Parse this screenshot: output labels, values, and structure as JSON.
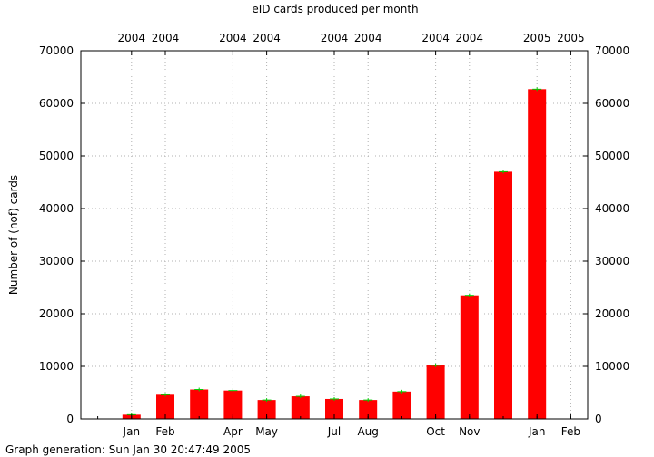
{
  "chart_data": {
    "type": "bar",
    "title": "eID cards produced per month",
    "ylabel": "Number of (nof) cards",
    "footer": "Graph generation: Sun Jan 30 20:47:49 2005",
    "ylim": [
      0,
      70000
    ],
    "yticks": [
      0,
      10000,
      20000,
      30000,
      40000,
      50000,
      60000,
      70000
    ],
    "grid": true,
    "bar_color": "#ff0000",
    "cap_color": "#00cc00",
    "x": [
      1,
      2,
      3,
      4,
      5,
      6,
      7,
      8,
      9,
      10,
      11,
      12,
      13,
      14
    ],
    "values": [
      800,
      4600,
      5600,
      5400,
      3600,
      4300,
      3800,
      3600,
      5200,
      10200,
      23500,
      47000,
      62700,
      0
    ],
    "xlim": [
      -0.5,
      14.5
    ],
    "bottom_ticks": [
      {
        "x": 1,
        "label": "Jan"
      },
      {
        "x": 2,
        "label": "Feb"
      },
      {
        "x": 4,
        "label": "Apr"
      },
      {
        "x": 5,
        "label": "May"
      },
      {
        "x": 7,
        "label": "Jul"
      },
      {
        "x": 8,
        "label": "Aug"
      },
      {
        "x": 10,
        "label": "Oct"
      },
      {
        "x": 11,
        "label": "Nov"
      },
      {
        "x": 13,
        "label": "Jan"
      },
      {
        "x": 14,
        "label": "Feb"
      }
    ],
    "top_ticks": [
      {
        "x": 1,
        "label": "2004"
      },
      {
        "x": 2,
        "label": "2004"
      },
      {
        "x": 4,
        "label": "2004"
      },
      {
        "x": 5,
        "label": "2004"
      },
      {
        "x": 7,
        "label": "2004"
      },
      {
        "x": 8,
        "label": "2004"
      },
      {
        "x": 10,
        "label": "2004"
      },
      {
        "x": 11,
        "label": "2004"
      },
      {
        "x": 13,
        "label": "2005"
      },
      {
        "x": 14,
        "label": "2005"
      }
    ]
  }
}
